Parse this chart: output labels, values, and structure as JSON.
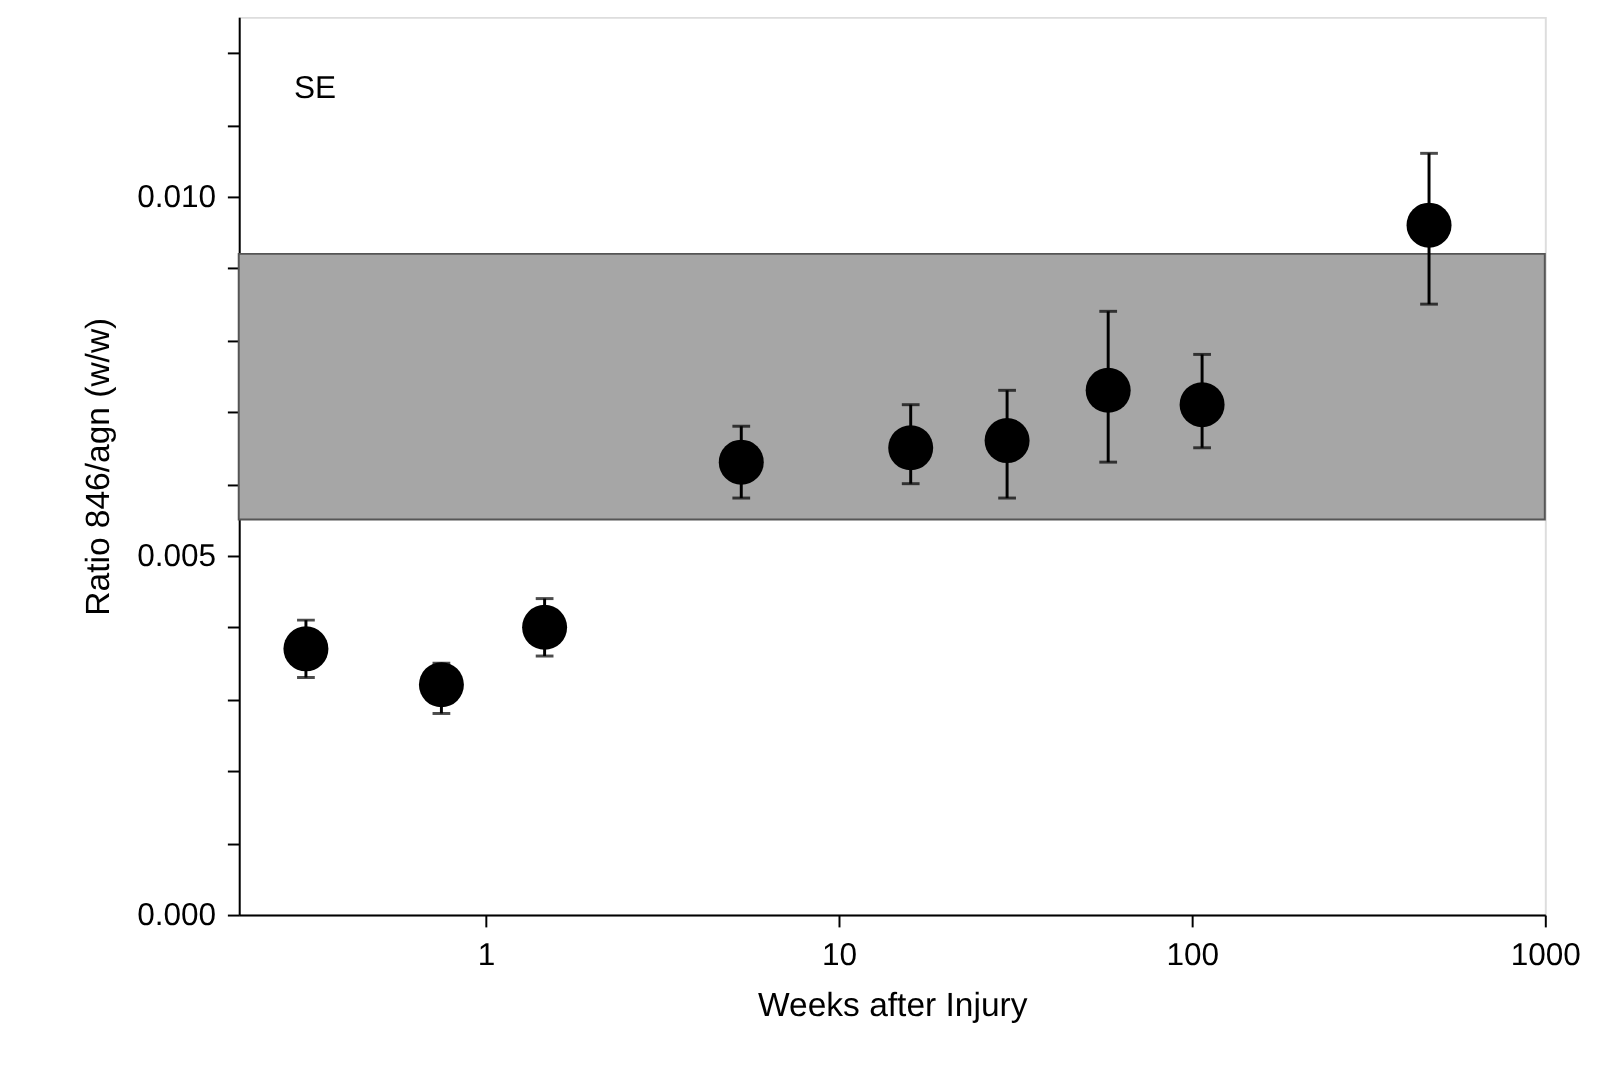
{
  "chart_data": {
    "type": "scatter",
    "xlabel": "Weeks after Injury",
    "ylabel": "Ratio 846/agn (w/w)",
    "annotations": [
      "SE"
    ],
    "x": [
      0.31,
      0.75,
      1.47,
      5.3,
      16,
      30,
      58,
      107,
      470
    ],
    "series": [
      {
        "color": "#000000",
        "values": [
          0.0037,
          0.0032,
          0.004,
          0.0063,
          0.0065,
          0.0066,
          0.0073,
          0.0071,
          0.0096
        ],
        "errors": [
          [
            0.0033,
            0.0041
          ],
          [
            0.0028,
            0.0035
          ],
          [
            0.0036,
            0.0044
          ],
          [
            0.0058,
            0.0068
          ],
          [
            0.006,
            0.0071
          ],
          [
            0.0058,
            0.0073
          ],
          [
            0.0063,
            0.0084
          ],
          [
            0.0065,
            0.0078
          ],
          [
            0.0085,
            0.0106
          ]
        ]
      }
    ],
    "log": "x",
    "xlim": [
      0.2,
      1000
    ],
    "xticks": [
      1,
      10,
      100,
      1000
    ],
    "ylim": [
      0,
      0.0125
    ],
    "yticks": [
      {
        "value": 0,
        "label": "0.000"
      },
      {
        "value": 0.001,
        "label": null
      },
      {
        "value": 0.002,
        "label": null
      },
      {
        "value": 0.003,
        "label": null
      },
      {
        "value": 0.004,
        "label": null
      },
      {
        "value": 0.005,
        "label": "0.005"
      },
      {
        "value": 0.006,
        "label": null
      },
      {
        "value": 0.007,
        "label": null
      },
      {
        "value": 0.008,
        "label": null
      },
      {
        "value": 0.009,
        "label": null
      },
      {
        "value": 0.01,
        "label": "0.010"
      },
      {
        "value": 0.011,
        "label": null
      },
      {
        "value": 0.012,
        "label": null
      }
    ],
    "bands": [
      {
        "axis": "y",
        "from": 0.0055,
        "to": 0.0092,
        "color": "#a6a6a6"
      }
    ],
    "marker": "circle",
    "grid": false,
    "legend": false
  }
}
